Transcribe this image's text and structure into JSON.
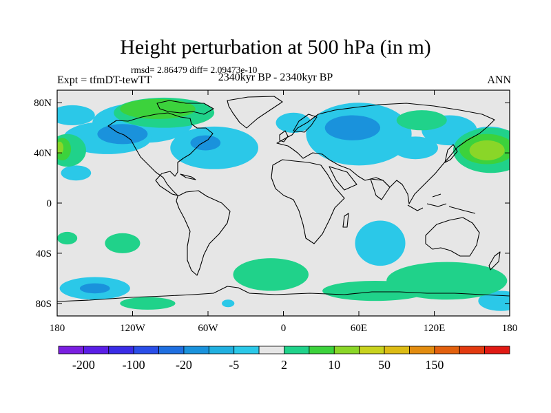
{
  "title": "Height perturbation at 500 hPa (in m)",
  "stats": "rmsd= 2.86479 diff= 2.09473e-10",
  "left_label": "Expt = tfmDT-tewTT",
  "center_label": "2340kyr BP - 2340kyr BP",
  "right_label": "ANN",
  "map": {
    "projection": "cylindrical-equidistant",
    "lon_range": [
      -180,
      180
    ],
    "lat_range": [
      -90,
      90
    ],
    "lon_ticks": [
      {
        "value": -180,
        "label": "180"
      },
      {
        "value": -120,
        "label": "120W"
      },
      {
        "value": -60,
        "label": "60W"
      },
      {
        "value": 0,
        "label": "0"
      },
      {
        "value": 60,
        "label": "60E"
      },
      {
        "value": 120,
        "label": "120E"
      },
      {
        "value": 180,
        "label": "180"
      }
    ],
    "lat_ticks": [
      {
        "value": 80,
        "label": "80N"
      },
      {
        "value": 40,
        "label": "40N"
      },
      {
        "value": 0,
        "label": "0"
      },
      {
        "value": -40,
        "label": "40S"
      },
      {
        "value": -80,
        "label": "80S"
      }
    ],
    "background_color": "#e6e6e6"
  },
  "colorbar": {
    "colors": [
      "#7a1fe0",
      "#5a1ee6",
      "#3a2ce6",
      "#2a4ee8",
      "#1f6fe0",
      "#1a92dc",
      "#21b0e0",
      "#2bc8e8",
      "#e6e6e6",
      "#20d28a",
      "#3cd23c",
      "#8ad628",
      "#c8d21e",
      "#dcbb14",
      "#e28c10",
      "#e2600e",
      "#e23a10",
      "#e01a14"
    ],
    "labels": [
      {
        "boundary": 1,
        "text": "-200"
      },
      {
        "boundary": 3,
        "text": "-100"
      },
      {
        "boundary": 5,
        "text": "-20"
      },
      {
        "boundary": 7,
        "text": "-5"
      },
      {
        "boundary": 9,
        "text": "2"
      },
      {
        "boundary": 11,
        "text": "10"
      },
      {
        "boundary": 13,
        "text": "50"
      },
      {
        "boundary": 15,
        "text": "150"
      }
    ]
  },
  "anomaly_regions": [
    {
      "level": "-5",
      "color": "#2bc8e8",
      "lon": -112,
      "lat": 64,
      "rlon": 40,
      "rlat": 16
    },
    {
      "level": "-5",
      "color": "#2bc8e8",
      "lon": -55,
      "lat": 44,
      "rlon": 35,
      "rlat": 17
    },
    {
      "level": "-5",
      "color": "#2bc8e8",
      "lon": -140,
      "lat": 52,
      "rlon": 35,
      "rlat": 13
    },
    {
      "level": "-5",
      "color": "#2bc8e8",
      "lon": -168,
      "lat": 70,
      "rlon": 18,
      "rlat": 8
    },
    {
      "level": "-5",
      "color": "#2bc8e8",
      "lon": 8,
      "lat": 64,
      "rlon": 14,
      "rlat": 8
    },
    {
      "level": "-5",
      "color": "#2bc8e8",
      "lon": 60,
      "lat": 55,
      "rlon": 42,
      "rlat": 25
    },
    {
      "level": "-5",
      "color": "#2bc8e8",
      "lon": 105,
      "lat": 44,
      "rlon": 18,
      "rlat": 9
    },
    {
      "level": "-5",
      "color": "#2bc8e8",
      "lon": 132,
      "lat": 58,
      "rlon": 22,
      "rlat": 12
    },
    {
      "level": "-5",
      "color": "#2bc8e8",
      "lon": 164,
      "lat": 48,
      "rlon": 22,
      "rlat": 13
    },
    {
      "level": "-5",
      "color": "#2bc8e8",
      "lon": -165,
      "lat": 24,
      "rlon": 12,
      "rlat": 6
    },
    {
      "level": "-5",
      "color": "#2bc8e8",
      "lon": 77,
      "lat": -32,
      "rlon": 20,
      "rlat": 18
    },
    {
      "level": "-5",
      "color": "#2bc8e8",
      "lon": -150,
      "lat": -68,
      "rlon": 28,
      "rlat": 9
    },
    {
      "level": "-5",
      "color": "#2bc8e8",
      "lon": 173,
      "lat": -78,
      "rlon": 18,
      "rlat": 8
    },
    {
      "level": "-5",
      "color": "#2bc8e8",
      "lon": -44,
      "lat": -80,
      "rlon": 5,
      "rlat": 3
    },
    {
      "level": "-20",
      "color": "#1a92dc",
      "lon": -128,
      "lat": 55,
      "rlon": 20,
      "rlat": 8
    },
    {
      "level": "-20",
      "color": "#1a92dc",
      "lon": -62,
      "lat": 48,
      "rlon": 12,
      "rlat": 6
    },
    {
      "level": "-20",
      "color": "#1a92dc",
      "lon": 55,
      "lat": 60,
      "rlon": 22,
      "rlat": 10
    },
    {
      "level": "-20",
      "color": "#1a92dc",
      "lon": -150,
      "lat": -68,
      "rlon": 12,
      "rlat": 4
    },
    {
      "level": "2",
      "color": "#20d28a",
      "lon": -95,
      "lat": 72,
      "rlon": 40,
      "rlat": 12
    },
    {
      "level": "2",
      "color": "#20d28a",
      "lon": 165,
      "lat": 42,
      "rlon": 30,
      "rlat": 18
    },
    {
      "level": "2",
      "color": "#20d28a",
      "lon": 110,
      "lat": 66,
      "rlon": 20,
      "rlat": 8
    },
    {
      "level": "2",
      "color": "#20d28a",
      "lon": -172,
      "lat": 42,
      "rlon": 15,
      "rlat": 13
    },
    {
      "level": "2",
      "color": "#20d28a",
      "lon": -128,
      "lat": -32,
      "rlon": 14,
      "rlat": 8
    },
    {
      "level": "2",
      "color": "#20d28a",
      "lon": -172,
      "lat": -28,
      "rlon": 8,
      "rlat": 5
    },
    {
      "level": "2",
      "color": "#20d28a",
      "lon": 130,
      "lat": -62,
      "rlon": 48,
      "rlat": 15
    },
    {
      "level": "2",
      "color": "#20d28a",
      "lon": -10,
      "lat": -57,
      "rlon": 30,
      "rlat": 13
    },
    {
      "level": "2",
      "color": "#20d28a",
      "lon": 73,
      "lat": -70,
      "rlon": 42,
      "rlat": 8
    },
    {
      "level": "2",
      "color": "#20d28a",
      "lon": -108,
      "lat": -80,
      "rlon": 22,
      "rlat": 5
    },
    {
      "level": "10",
      "color": "#3cd23c",
      "lon": -100,
      "lat": 75,
      "rlon": 30,
      "rlat": 8
    },
    {
      "level": "10",
      "color": "#3cd23c",
      "lon": 162,
      "lat": 43,
      "rlon": 22,
      "rlat": 12
    },
    {
      "level": "10",
      "color": "#3cd23c",
      "lon": -176,
      "lat": 43,
      "rlon": 7,
      "rlat": 9
    },
    {
      "level": "20",
      "color": "#8ad628",
      "lon": 162,
      "lat": 42,
      "rlon": 14,
      "rlat": 8
    },
    {
      "level": "20",
      "color": "#8ad628",
      "lon": -178,
      "lat": 44,
      "rlon": 3,
      "rlat": 5
    }
  ]
}
